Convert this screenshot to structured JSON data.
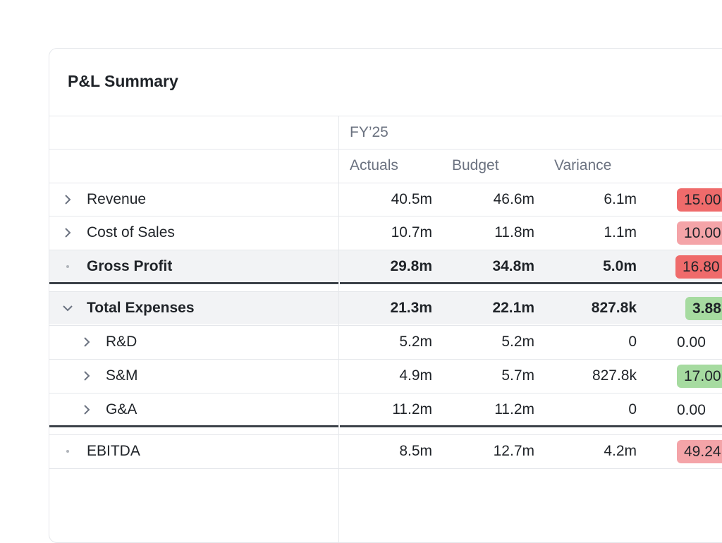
{
  "card": {
    "title": "P&L Summary"
  },
  "header": {
    "period": "FY’25",
    "columns": [
      "Actuals",
      "Budget",
      "Variance"
    ]
  },
  "rows": [
    {
      "label": "Revenue",
      "actuals": "40.5m",
      "budget": "46.6m",
      "variance": "6.1m",
      "variance_pct": "15.00",
      "pct_color": "#ef6b6b"
    },
    {
      "label": "Cost of Sales",
      "actuals": "10.7m",
      "budget": "11.8m",
      "variance": "1.1m",
      "variance_pct": "10.00",
      "pct_color": "#f4a4a8"
    },
    {
      "label": "Gross Profit",
      "actuals": "29.8m",
      "budget": "34.8m",
      "variance": "5.0m",
      "variance_pct": "16.80",
      "pct_color": "#ef6b6b"
    },
    {
      "label": "Total Expenses",
      "actuals": "21.3m",
      "budget": "22.1m",
      "variance": "827.8k",
      "variance_pct": "3.88",
      "pct_color": "#a6dba0"
    },
    {
      "label": "R&D",
      "actuals": "5.2m",
      "budget": "5.2m",
      "variance": "0",
      "variance_pct": "0.00"
    },
    {
      "label": "S&M",
      "actuals": "4.9m",
      "budget": "5.7m",
      "variance": "827.8k",
      "variance_pct": "17.00",
      "pct_color": "#a6dba0"
    },
    {
      "label": "G&A",
      "actuals": "11.2m",
      "budget": "11.2m",
      "variance": "0",
      "variance_pct": "0.00"
    },
    {
      "label": "EBITDA",
      "actuals": "8.5m",
      "budget": "12.7m",
      "variance": "4.2m",
      "variance_pct": "49.24",
      "pct_color": "#f4a4a8"
    }
  ],
  "icons": {
    "expand": "chevron-right-icon",
    "collapse": "chevron-down-icon",
    "leaf": "dot-icon"
  }
}
